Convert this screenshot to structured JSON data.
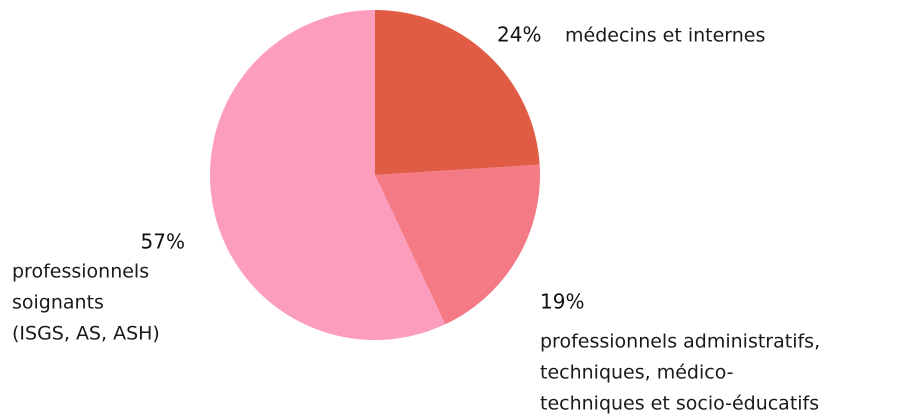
{
  "chart_data": {
    "type": "pie",
    "categories": [
      [
        "médecins et internes"
      ],
      [
        "professionnels administratifs,",
        "techniques, médico-",
        "techniques et socio-éducatifs"
      ],
      [
        "professionnels",
        "soignants",
        "(ISGS, AS, ASH)"
      ]
    ],
    "values": [
      24,
      19,
      57
    ],
    "value_labels": [
      "24%",
      "19%",
      "57%"
    ],
    "colors": [
      "#e05c45",
      "#f47a85",
      "#fc9dbd"
    ]
  }
}
